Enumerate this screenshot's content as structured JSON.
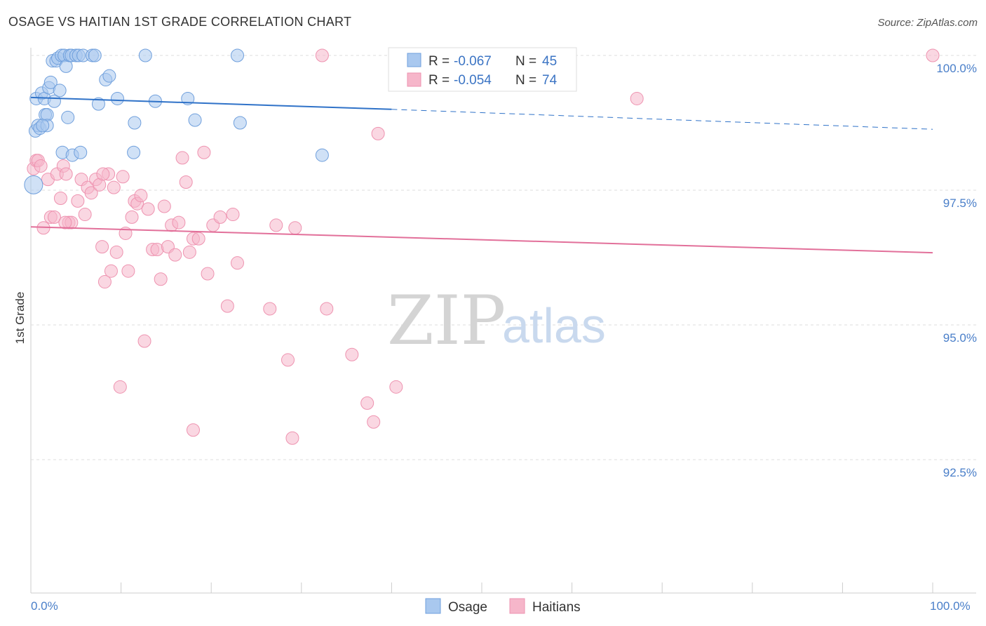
{
  "header": {
    "title": "OSAGE VS HAITIAN 1ST GRADE CORRELATION CHART",
    "source": "Source: ZipAtlas.com"
  },
  "watermark": {
    "zip": "ZIP",
    "atlas": "atlas"
  },
  "legend": {
    "rows": [
      {
        "r_label": "R =",
        "r_value": "-0.067",
        "n_label": "N =",
        "n_value": "45",
        "color": "#a9c8ef"
      },
      {
        "r_label": "R =",
        "r_value": "-0.054",
        "n_label": "N =",
        "n_value": "74",
        "color": "#f6b6ca"
      }
    ]
  },
  "bottom_legend": [
    {
      "label": "Osage",
      "color": "#a9c8ef"
    },
    {
      "label": "Haitians",
      "color": "#f6b6ca"
    }
  ],
  "chart_data": {
    "type": "scatter",
    "title": "OSAGE VS HAITIAN 1ST GRADE CORRELATION CHART",
    "ylabel": "1st Grade",
    "xlabel": "",
    "xlim": [
      0,
      100
    ],
    "ylim": [
      90.0,
      100.5
    ],
    "x_tick_labels": [
      "0.0%",
      "100.0%"
    ],
    "y_ticks": [
      {
        "value": 100.0,
        "label": "100.0%"
      },
      {
        "value": 97.5,
        "label": "97.5%"
      },
      {
        "value": 95.0,
        "label": "95.0%"
      },
      {
        "value": 92.5,
        "label": "92.5%"
      }
    ],
    "grid": true,
    "legend_position": "top-center",
    "series": [
      {
        "name": "Osage",
        "color": "#a9c8ef",
        "stroke": "#6f9fdc",
        "trend_color": "#2f72c8",
        "trend": {
          "x0": 0,
          "y0": 99.22,
          "x1": 40,
          "y1": 99.0,
          "dashed_to_x": 100,
          "dashed_to_y": 98.63
        },
        "points": [
          [
            0.3,
            97.6
          ],
          [
            0.5,
            98.6
          ],
          [
            0.6,
            99.2
          ],
          [
            0.8,
            98.7
          ],
          [
            1.0,
            98.65
          ],
          [
            1.2,
            99.3
          ],
          [
            1.5,
            99.2
          ],
          [
            1.6,
            98.9
          ],
          [
            1.8,
            98.9
          ],
          [
            1.8,
            98.7
          ],
          [
            2.0,
            99.4
          ],
          [
            2.2,
            99.5
          ],
          [
            2.4,
            99.9
          ],
          [
            2.6,
            99.15
          ],
          [
            2.8,
            99.9
          ],
          [
            3.0,
            99.95
          ],
          [
            3.2,
            99.35
          ],
          [
            3.4,
            100.0
          ],
          [
            3.5,
            98.2
          ],
          [
            3.7,
            100.0
          ],
          [
            3.9,
            99.8
          ],
          [
            4.1,
            98.85
          ],
          [
            4.3,
            100.0
          ],
          [
            4.5,
            100.0
          ],
          [
            4.6,
            98.15
          ],
          [
            5.0,
            100.0
          ],
          [
            5.3,
            100.0
          ],
          [
            5.5,
            98.2
          ],
          [
            5.8,
            100.0
          ],
          [
            6.8,
            100.0
          ],
          [
            7.1,
            100.0
          ],
          [
            7.5,
            99.1
          ],
          [
            8.3,
            99.55
          ],
          [
            8.7,
            99.62
          ],
          [
            9.6,
            99.2
          ],
          [
            11.4,
            98.2
          ],
          [
            11.5,
            98.75
          ],
          [
            12.7,
            100.0
          ],
          [
            13.8,
            99.15
          ],
          [
            17.4,
            99.2
          ],
          [
            18.2,
            98.8
          ],
          [
            22.9,
            100.0
          ],
          [
            23.2,
            98.75
          ],
          [
            32.3,
            98.15
          ],
          [
            1.3,
            98.7
          ]
        ]
      },
      {
        "name": "Haitians",
        "color": "#f6b6ca",
        "stroke": "#ee93b0",
        "trend_color": "#e2709a",
        "trend": {
          "x0": 0,
          "y0": 96.82,
          "x1": 100,
          "y1": 96.34
        },
        "points": [
          [
            0.3,
            97.9
          ],
          [
            0.6,
            98.05
          ],
          [
            0.8,
            98.05
          ],
          [
            1.1,
            97.95
          ],
          [
            1.4,
            96.8
          ],
          [
            1.9,
            97.7
          ],
          [
            2.2,
            97.0
          ],
          [
            2.6,
            97.0
          ],
          [
            2.9,
            97.8
          ],
          [
            3.3,
            97.35
          ],
          [
            3.6,
            97.95
          ],
          [
            3.9,
            97.8
          ],
          [
            4.2,
            96.9
          ],
          [
            4.5,
            96.9
          ],
          [
            5.2,
            97.3
          ],
          [
            5.6,
            97.7
          ],
          [
            6.0,
            97.05
          ],
          [
            6.3,
            97.55
          ],
          [
            6.7,
            97.45
          ],
          [
            7.2,
            97.7
          ],
          [
            7.6,
            97.6
          ],
          [
            7.9,
            96.45
          ],
          [
            8.2,
            95.8
          ],
          [
            8.6,
            97.8
          ],
          [
            8.9,
            96.0
          ],
          [
            9.2,
            97.55
          ],
          [
            9.5,
            96.35
          ],
          [
            10.2,
            97.75
          ],
          [
            10.5,
            96.7
          ],
          [
            10.8,
            96.0
          ],
          [
            11.2,
            97.0
          ],
          [
            11.5,
            97.3
          ],
          [
            11.8,
            97.25
          ],
          [
            12.2,
            97.4
          ],
          [
            12.6,
            94.7
          ],
          [
            13.0,
            97.15
          ],
          [
            13.5,
            96.4
          ],
          [
            14.0,
            96.4
          ],
          [
            14.4,
            95.85
          ],
          [
            14.8,
            97.2
          ],
          [
            15.2,
            96.45
          ],
          [
            15.6,
            96.85
          ],
          [
            16.0,
            96.3
          ],
          [
            16.4,
            96.9
          ],
          [
            16.8,
            98.1
          ],
          [
            17.2,
            97.65
          ],
          [
            17.6,
            96.35
          ],
          [
            18.0,
            96.6
          ],
          [
            18.6,
            96.6
          ],
          [
            19.2,
            98.2
          ],
          [
            19.6,
            95.95
          ],
          [
            20.2,
            96.85
          ],
          [
            21.0,
            97.0
          ],
          [
            21.8,
            95.35
          ],
          [
            22.4,
            97.05
          ],
          [
            22.9,
            96.15
          ],
          [
            9.9,
            93.85
          ],
          [
            18.0,
            93.05
          ],
          [
            26.5,
            95.3
          ],
          [
            27.2,
            96.85
          ],
          [
            28.5,
            94.35
          ],
          [
            29.0,
            92.9
          ],
          [
            29.3,
            96.8
          ],
          [
            32.3,
            100.0
          ],
          [
            32.8,
            95.3
          ],
          [
            35.6,
            94.45
          ],
          [
            37.3,
            93.55
          ],
          [
            38.0,
            93.2
          ],
          [
            38.5,
            98.55
          ],
          [
            40.5,
            93.85
          ],
          [
            67.2,
            99.2
          ],
          [
            100.0,
            100.0
          ],
          [
            3.8,
            96.9
          ],
          [
            8.0,
            97.8
          ]
        ]
      }
    ]
  }
}
